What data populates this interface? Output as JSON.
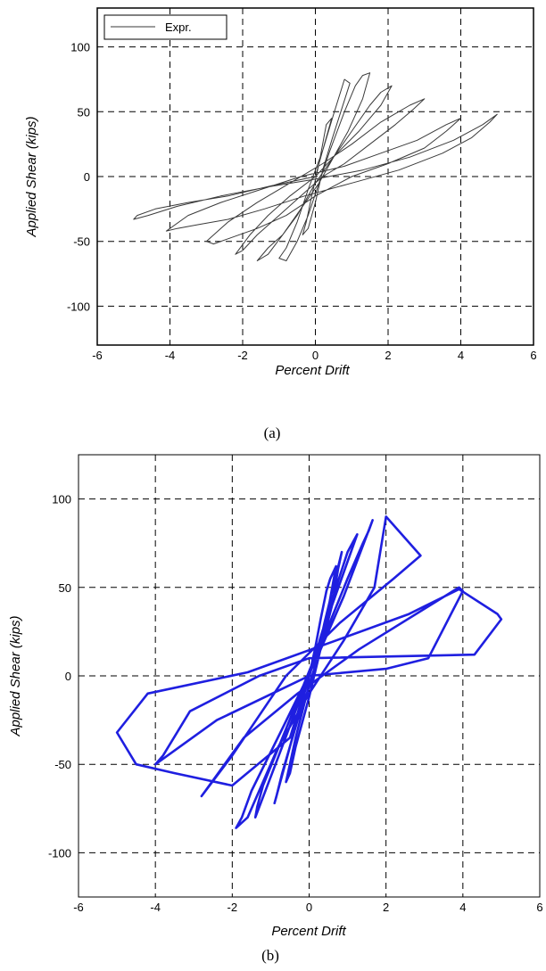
{
  "chart_data": [
    {
      "type": "line",
      "panel": "(a)",
      "xlabel": "Percent Drift",
      "ylabel": "Applied Shear (kips)",
      "xlim": [
        -6,
        6
      ],
      "ylim": [
        -130,
        130
      ],
      "xticks": [
        -6,
        -4,
        -2,
        0,
        2,
        4,
        6
      ],
      "yticks": [
        -100,
        -50,
        0,
        50,
        100
      ],
      "grid": true,
      "legend": "top-left",
      "series": [
        {
          "name": "Expr.",
          "color": "#3a3a3a",
          "x": [
            0,
            0.15,
            0.3,
            0.45,
            0.3,
            0.1,
            -0.1,
            -0.25,
            -0.35,
            -0.2,
            0,
            0.2,
            0.45,
            0.7,
            0.95,
            0.8,
            0.5,
            0.2,
            -0.2,
            -0.5,
            -0.8,
            -1.0,
            -0.8,
            -0.5,
            -0.2,
            0.1,
            0.4,
            0.8,
            1.1,
            1.3,
            1.5,
            1.3,
            0.9,
            0.5,
            0.1,
            -0.4,
            -0.9,
            -1.3,
            -1.6,
            -1.3,
            -0.9,
            -0.5,
            0,
            0.5,
            1.0,
            1.5,
            1.8,
            2.1,
            1.8,
            1.2,
            0.6,
            0,
            -0.7,
            -1.3,
            -1.8,
            -2.2,
            -2.0,
            -1.6,
            -1.0,
            -0.4,
            0.2,
            0.8,
            1.5,
            2.2,
            2.7,
            3.0,
            2.6,
            1.8,
            1.0,
            0.2,
            -0.7,
            -1.6,
            -2.4,
            -3.0,
            -2.8,
            -2.3,
            -1.6,
            -0.8,
            0,
            1.0,
            2.0,
            3.0,
            3.6,
            4.0,
            3.6,
            2.8,
            1.8,
            0.8,
            -0.4,
            -1.5,
            -2.6,
            -3.5,
            -4.0,
            -4.1,
            -3.8,
            -3.2,
            -2.4,
            -1.4,
            -0.3,
            1.0,
            2.3,
            3.5,
            4.3,
            4.8,
            5.0,
            4.6,
            3.8,
            2.6,
            1.3,
            0,
            -1.3,
            -2.6,
            -3.8,
            -4.6,
            -5.0,
            -4.9,
            -4.4,
            -3.5,
            -2.4,
            -1.2,
            0
          ],
          "y": [
            0,
            15,
            30,
            45,
            40,
            10,
            -15,
            -35,
            -45,
            -40,
            -20,
            5,
            28,
            50,
            72,
            75,
            48,
            20,
            -10,
            -35,
            -55,
            -63,
            -65,
            -50,
            -30,
            -5,
            20,
            50,
            70,
            78,
            80,
            60,
            35,
            15,
            -5,
            -25,
            -45,
            -60,
            -65,
            -55,
            -45,
            -30,
            -5,
            15,
            35,
            55,
            65,
            70,
            55,
            35,
            18,
            0,
            -15,
            -30,
            -45,
            -60,
            -57,
            -45,
            -30,
            -15,
            0,
            10,
            25,
            40,
            52,
            60,
            55,
            42,
            25,
            10,
            -5,
            -20,
            -35,
            -50,
            -52,
            -47,
            -40,
            -30,
            -15,
            0,
            10,
            22,
            35,
            45,
            40,
            28,
            18,
            8,
            0,
            -10,
            -20,
            -30,
            -40,
            -42,
            -40,
            -37,
            -33,
            -25,
            -15,
            -5,
            5,
            18,
            30,
            42,
            48,
            40,
            28,
            15,
            5,
            -2,
            -8,
            -15,
            -23,
            -30,
            -33,
            -30,
            -25,
            -20,
            -15,
            -7,
            0
          ]
        }
      ]
    },
    {
      "type": "line",
      "panel": "(b)",
      "xlabel": "Percent Drift",
      "ylabel": "Applied Shear (kips)",
      "xlim": [
        -6,
        6
      ],
      "ylim": [
        -125,
        125
      ],
      "xticks": [
        -6,
        -4,
        -2,
        0,
        2,
        4,
        6
      ],
      "yticks": [
        -100,
        -50,
        0,
        50,
        100
      ],
      "grid": true,
      "series": [
        {
          "color": "#1f1fe0",
          "x": [
            0,
            0.15,
            0.3,
            0.45,
            0.55,
            0.7,
            0.35,
            0.0,
            -0.35,
            -0.5,
            -0.6,
            -0.35,
            0.0,
            0.3,
            0.6,
            0.75,
            0.85,
            0.4,
            0.1,
            -0.3,
            -0.7,
            -0.85,
            -0.9,
            -0.5,
            -0.1,
            0.3,
            0.7,
            1.0,
            1.15,
            1.25,
            0.6,
            0.1,
            -0.6,
            -1.2,
            -1.35,
            -1.4,
            -0.7,
            -0.1,
            0.5,
            1.0,
            1.4,
            1.55,
            1.65,
            0.9,
            0.2,
            -0.7,
            -1.5,
            -1.75,
            -1.9,
            -1.6,
            -0.8,
            0.0,
            0.9,
            1.7,
            2.0,
            2.9,
            2.2,
            0.8,
            -0.6,
            -2.0,
            -2.8,
            -2.7,
            -1.7,
            -0.3,
            1.3,
            3.9,
            4.0,
            3.1,
            2.0,
            0.0,
            -2.4,
            -4.0,
            -3.8,
            -3.1,
            -1.3,
            0.0,
            4.3,
            5.0,
            4.9,
            3.9,
            2.6,
            0.7,
            -1.6,
            -4.2,
            -5.0,
            -4.5,
            -3.5,
            -2.0,
            -0.5,
            0
          ],
          "y": [
            0,
            15,
            32,
            48,
            55,
            62,
            20,
            -12,
            -40,
            -55,
            -60,
            -35,
            -5,
            15,
            40,
            60,
            70,
            30,
            0,
            -25,
            -55,
            -68,
            -72,
            -40,
            -8,
            22,
            50,
            70,
            76,
            80,
            40,
            8,
            -30,
            -62,
            -74,
            -80,
            -40,
            -5,
            28,
            55,
            75,
            82,
            88,
            45,
            10,
            -30,
            -65,
            -80,
            -86,
            -80,
            -40,
            -10,
            20,
            50,
            90,
            68,
            55,
            30,
            0,
            -45,
            -68,
            -65,
            -35,
            -10,
            15,
            50,
            48,
            10,
            4,
            0,
            -25,
            -50,
            -45,
            -20,
            0,
            10,
            12,
            32,
            35,
            49,
            35,
            20,
            2,
            -10,
            -32,
            -50,
            -55,
            -62,
            -35,
            0
          ]
        }
      ]
    }
  ],
  "captions": [
    "(a)",
    "(b)"
  ]
}
